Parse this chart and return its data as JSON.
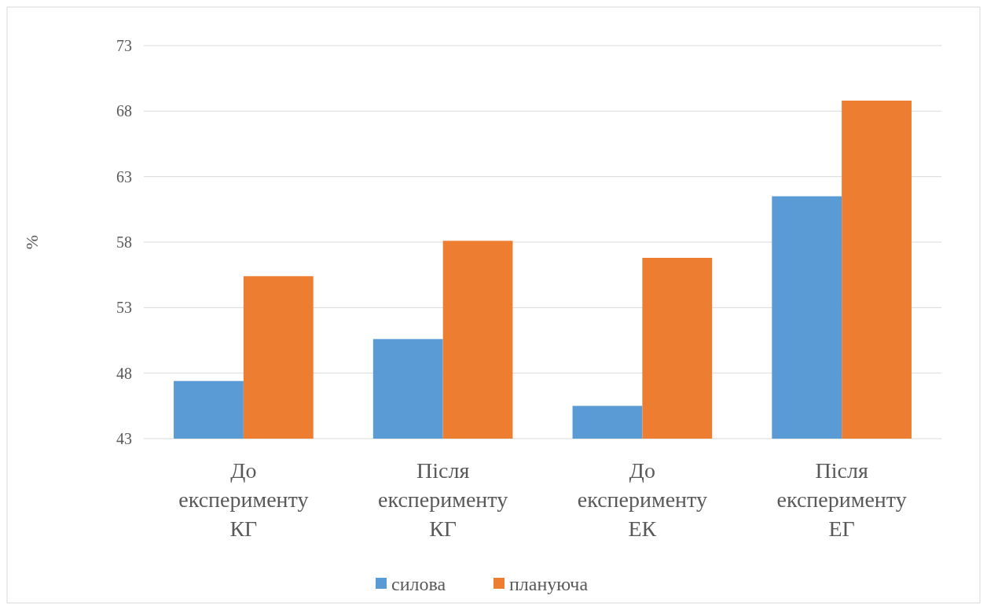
{
  "chart_data": {
    "type": "bar",
    "ylabel": "%",
    "categories": [
      "До експерименту КГ",
      "Після експерименту КГ",
      "До експерименту ЕК",
      "Після експерименту ЕГ"
    ],
    "series": [
      {
        "name": "силова",
        "color": "#5b9bd5",
        "values": [
          47.4,
          50.6,
          45.5,
          61.5
        ]
      },
      {
        "name": "плануюча",
        "color": "#ed7d31",
        "values": [
          55.4,
          58.1,
          56.8,
          68.8
        ]
      }
    ],
    "ylim": [
      43,
      73
    ],
    "yticks": [
      43,
      48,
      53,
      58,
      63,
      68,
      73
    ],
    "grid": "y",
    "legend": "bottom"
  }
}
